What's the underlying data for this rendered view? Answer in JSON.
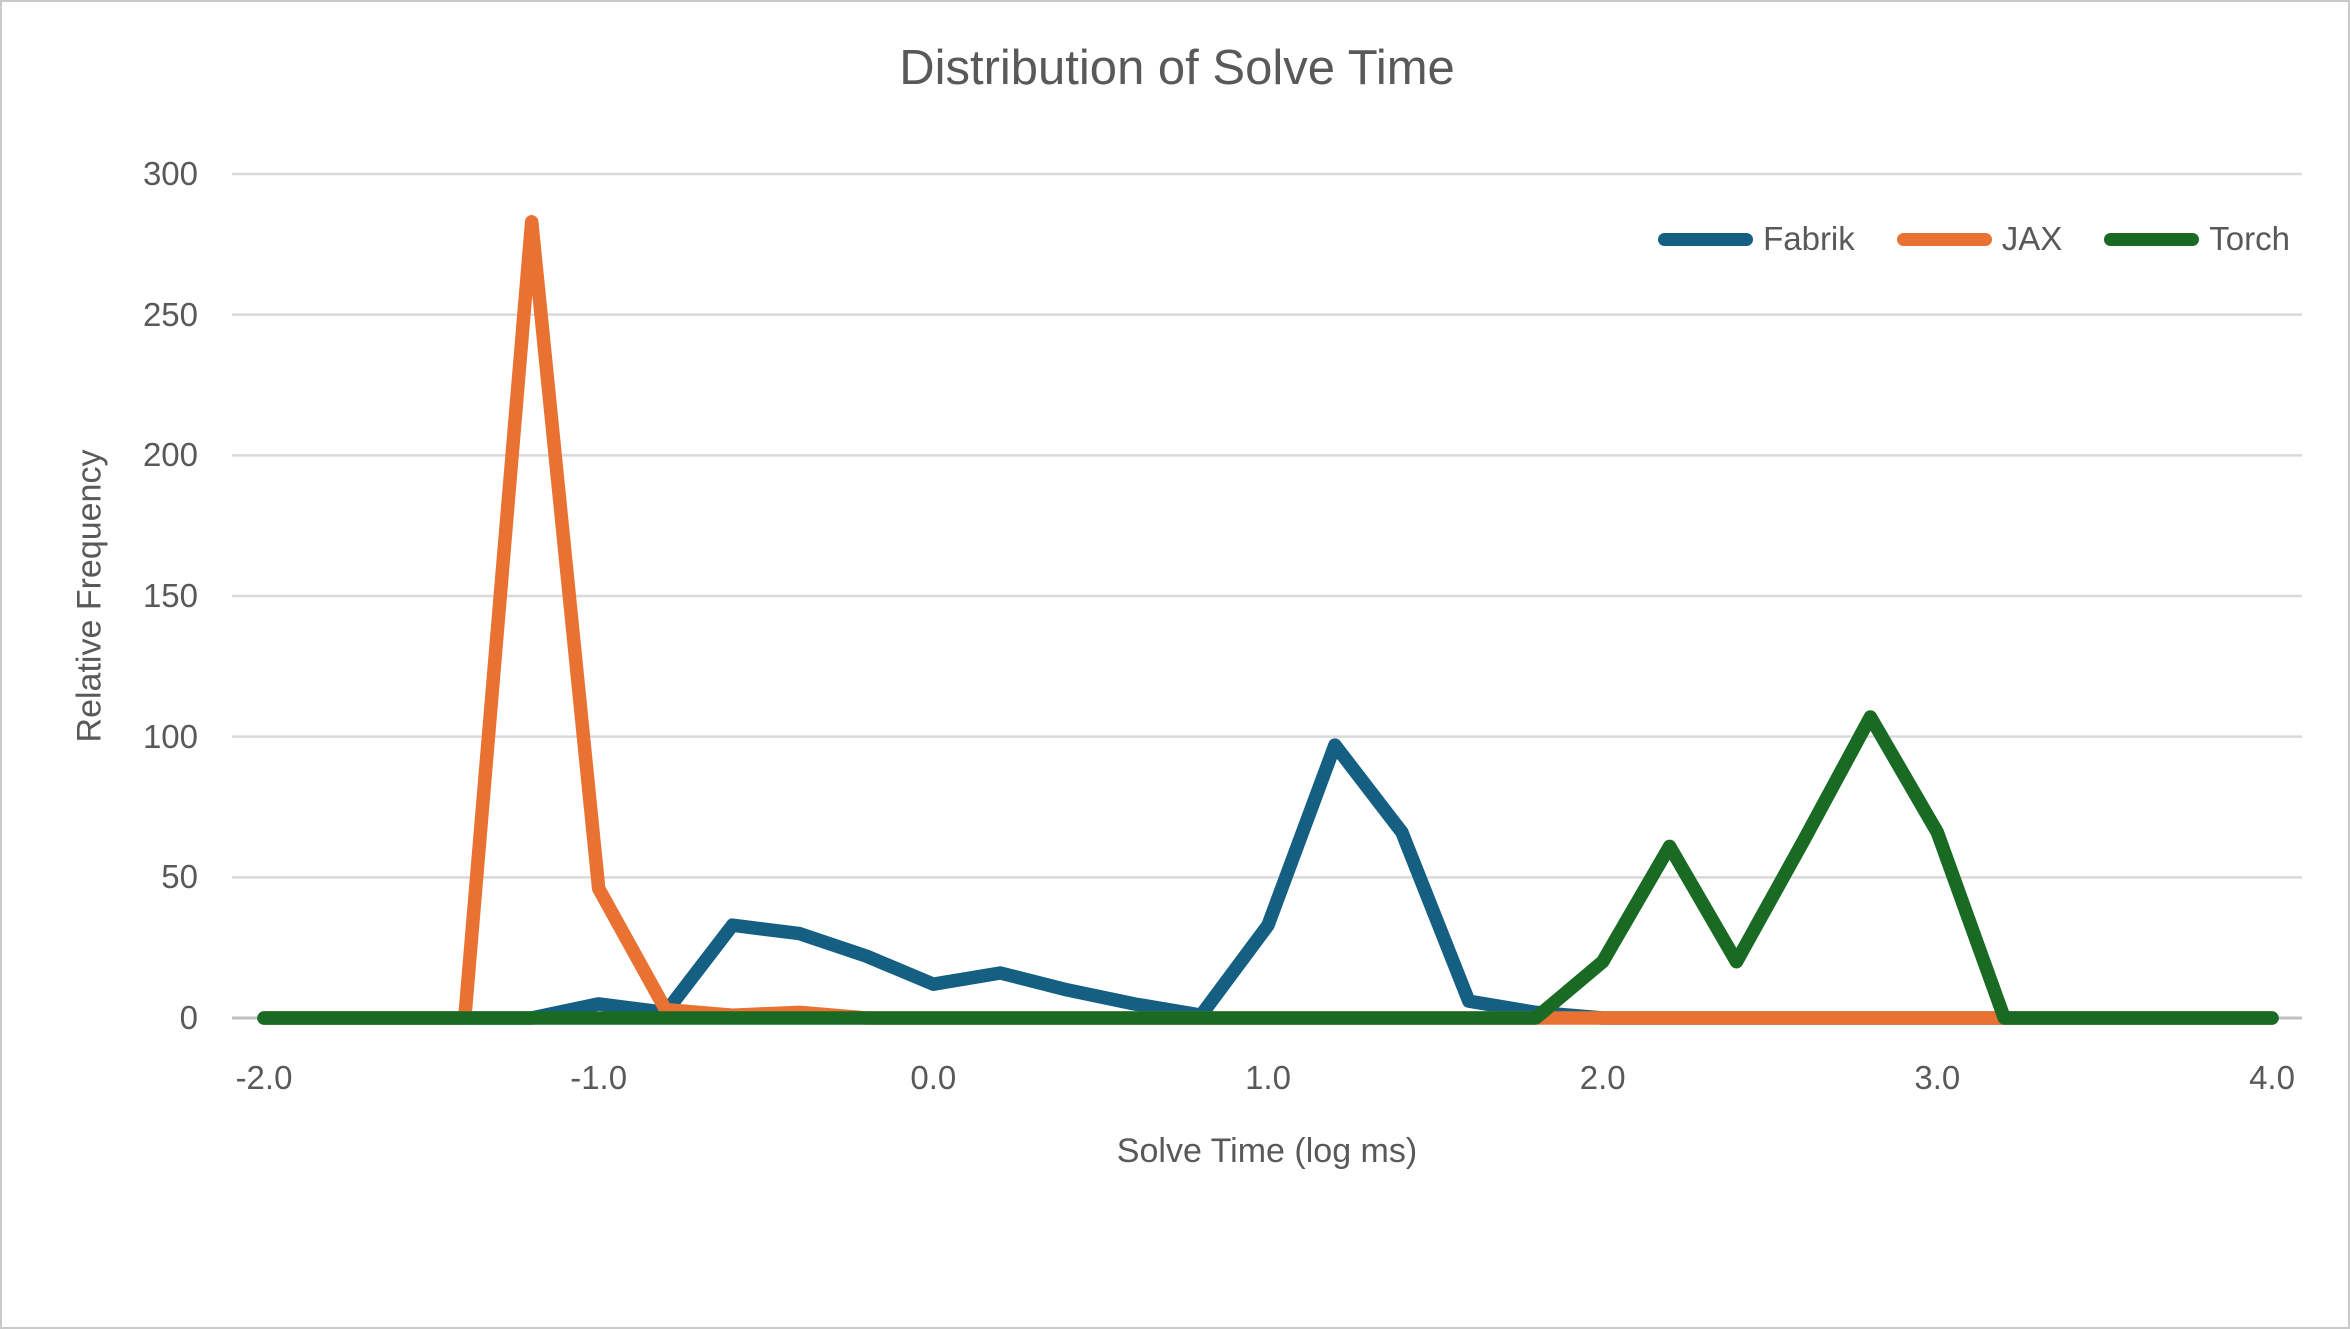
{
  "frame": {
    "background": "#ffffff",
    "border_color": "#c9c9c9"
  },
  "chart_data": {
    "type": "line",
    "title": "Distribution of Solve Time",
    "xlabel": "Solve Time (log ms)",
    "ylabel": "Relative Frequency",
    "xlim": [
      -2.0,
      4.0
    ],
    "ylim": [
      0,
      300
    ],
    "bin_width": 0.2,
    "grid": "horizontal",
    "legend_position": "top-right",
    "text_color": "#595959",
    "gridline_color": "#d9d9d9",
    "axis_line_color": "#bfbfbf",
    "x_ticks": [
      "-2.0",
      "-1.0",
      "0.0",
      "1.0",
      "2.0",
      "3.0",
      "4.0"
    ],
    "x_tick_values": [
      -2,
      -1,
      0,
      1,
      2,
      3,
      4
    ],
    "y_ticks": [
      "0",
      "50",
      "100",
      "150",
      "200",
      "250",
      "300"
    ],
    "y_tick_values": [
      0,
      50,
      100,
      150,
      200,
      250,
      300
    ],
    "x": [
      -2.0,
      -1.8,
      -1.6,
      -1.4,
      -1.2,
      -1.0,
      -0.8,
      -0.6,
      -0.4,
      -0.2,
      0.0,
      0.2,
      0.4,
      0.6,
      0.8,
      1.0,
      1.2,
      1.4,
      1.6,
      1.8,
      2.0,
      2.2,
      2.4,
      2.6,
      2.8,
      3.0,
      3.2,
      3.4,
      3.6,
      3.8,
      4.0
    ],
    "series": [
      {
        "name": "Fabrik",
        "color": "#156082",
        "values": [
          0,
          0,
          0,
          0,
          0,
          5,
          2,
          33,
          30,
          22,
          12,
          16,
          10,
          5,
          1,
          33,
          97,
          66,
          6,
          2,
          0,
          0,
          0,
          0,
          0,
          0,
          0,
          0,
          0,
          0,
          0
        ]
      },
      {
        "name": "JAX",
        "color": "#e97132",
        "values": [
          0,
          0,
          0,
          0,
          283,
          46,
          3,
          1,
          2,
          0,
          0,
          0,
          0,
          0,
          0,
          0,
          0,
          0,
          0,
          0,
          0,
          0,
          0,
          0,
          0,
          0,
          0,
          0,
          0,
          0,
          0
        ]
      },
      {
        "name": "Torch",
        "color": "#196b24",
        "values": [
          0,
          0,
          0,
          0,
          0,
          0,
          0,
          0,
          0,
          0,
          0,
          0,
          0,
          0,
          0,
          0,
          0,
          0,
          0,
          0,
          20,
          61,
          20,
          63,
          107,
          66,
          0,
          0,
          0,
          0,
          0
        ]
      }
    ]
  }
}
